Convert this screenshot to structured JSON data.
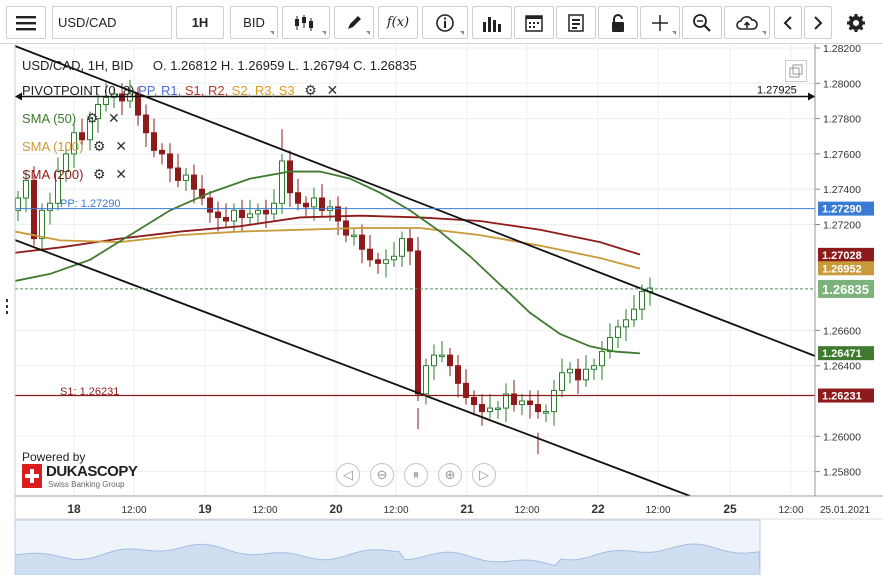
{
  "toolbar": {
    "symbol": "USD/CAD",
    "timeframe": "1H",
    "price_type": "BID",
    "fx_label": "f(x)"
  },
  "legend": {
    "instrument_line": "USD/CAD, 1H, BID",
    "ohlc": "O. 1.26812 H. 1.26959 L. 1.26794 C. 1.26835",
    "pivot_label": "PIVOTPOINT (0, 8)",
    "pivot_levels": [
      {
        "label": "PP,",
        "color": "#4a6fd8"
      },
      {
        "label": "R1,",
        "color": "#4a6fd8"
      },
      {
        "label": "S1,",
        "color": "#c0392b"
      },
      {
        "label": "R2,",
        "color": "#c0392b"
      },
      {
        "label": "S2,",
        "color": "#d99a1e"
      },
      {
        "label": "R3,",
        "color": "#d99a1e"
      },
      {
        "label": "S3",
        "color": "#d99a1e"
      }
    ],
    "sma50": "SMA (50)",
    "sma100": "SMA (100)",
    "sma200": "SMA (200)"
  },
  "colors": {
    "sma50": "#3f7a2e",
    "sma100": "#c9993a",
    "sma200": "#8e1b1b",
    "pp": "#3a7bd5",
    "s1": "#8e1b1b",
    "candle_up": "#2e7d2e",
    "candle_down": "#8e1b1b"
  },
  "price_axis": {
    "ticks": [
      "1.28200",
      "1.28000",
      "1.27800",
      "1.27600",
      "1.27400",
      "1.27200",
      "1.26600",
      "1.26400",
      "1.26000",
      "1.25800"
    ],
    "tick_values": [
      1.282,
      1.28,
      1.278,
      1.276,
      1.274,
      1.272,
      1.266,
      1.264,
      1.26,
      1.258
    ]
  },
  "price_labels": {
    "horizontal_line": "1.27925",
    "pp": "1.27290",
    "sma200": "1.27028",
    "sma100": "1.26952",
    "last": "1.26835",
    "sma50": "1.26471",
    "s1": "1.26231"
  },
  "line_labels": {
    "pp": "PP: 1.27290",
    "s1": "S1: 1.26231"
  },
  "time_axis": [
    {
      "label": "18",
      "bold": true
    },
    {
      "label": "12:00",
      "bold": false
    },
    {
      "label": "19",
      "bold": true
    },
    {
      "label": "12:00",
      "bold": false
    },
    {
      "label": "20",
      "bold": true
    },
    {
      "label": "12:00",
      "bold": false
    },
    {
      "label": "21",
      "bold": true
    },
    {
      "label": "12:00",
      "bold": false
    },
    {
      "label": "22",
      "bold": true
    },
    {
      "label": "12:00",
      "bold": false
    },
    {
      "label": "25",
      "bold": true
    },
    {
      "label": "12:00",
      "bold": false
    },
    {
      "label": "25.01.2021",
      "bold": false
    }
  ],
  "branding": {
    "powered_by": "Powered by",
    "name": "DUKASCOPY",
    "tagline": "Swiss Banking Group"
  }
}
